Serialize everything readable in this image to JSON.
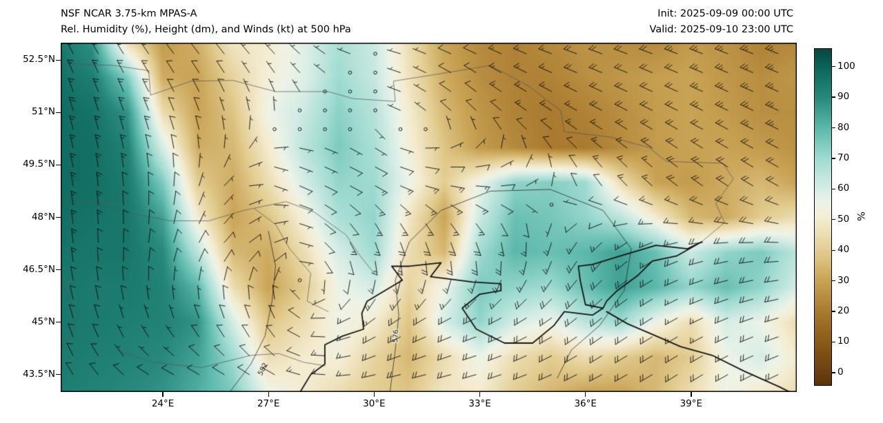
{
  "header": {
    "title_line1": "NSF NCAR 3.75-km MPAS-A",
    "title_line2": "Rel. Humidity (%), Height (dm), and Winds (kt) at 500 hPa",
    "init_label": "Init: 2025-09-09 00:00 UTC",
    "valid_label": "Valid: 2025-09-10 23:00 UTC"
  },
  "chart_data": {
    "type": "heatmap",
    "subtype": "filled-contour map with wind barbs and geopotential height contours",
    "title": "Rel. Humidity (%), Height (dm), and Winds (kt) at 500 hPa",
    "model": "NSF NCAR 3.75-km MPAS-A",
    "extent": {
      "lon_min": 21.1,
      "lon_max": 42.0,
      "lat_min": 43.0,
      "lat_max": 53.0
    },
    "x_ticks": [
      {
        "lon": 24,
        "label": "24°E"
      },
      {
        "lon": 27,
        "label": "27°E"
      },
      {
        "lon": 30,
        "label": "30°E"
      },
      {
        "lon": 33,
        "label": "33°E"
      },
      {
        "lon": 36,
        "label": "36°E"
      },
      {
        "lon": 39,
        "label": "39°E"
      }
    ],
    "y_ticks": [
      {
        "lat": 52.5,
        "label": "52.5°N"
      },
      {
        "lat": 51.0,
        "label": "51°N"
      },
      {
        "lat": 49.5,
        "label": "49.5°N"
      },
      {
        "lat": 48.0,
        "label": "48°N"
      },
      {
        "lat": 46.5,
        "label": "46.5°N"
      },
      {
        "lat": 45.0,
        "label": "45°N"
      },
      {
        "lat": 43.5,
        "label": "43.5°N"
      }
    ],
    "colorbar": {
      "label": "%",
      "ticks": [
        0,
        10,
        20,
        30,
        40,
        50,
        60,
        70,
        80,
        90,
        100
      ],
      "under": "#5a3205",
      "over": "#07463e",
      "stops": [
        {
          "v": 0,
          "c": "#6b3f10"
        },
        {
          "v": 10,
          "c": "#8a5a19"
        },
        {
          "v": 20,
          "c": "#a97a2f"
        },
        {
          "v": 30,
          "c": "#c9a355"
        },
        {
          "v": 40,
          "c": "#e3cd92"
        },
        {
          "v": 50,
          "c": "#f4ecd1"
        },
        {
          "v": 55,
          "c": "#eef3e6"
        },
        {
          "v": 60,
          "c": "#d6ede6"
        },
        {
          "v": 70,
          "c": "#a0dbd1"
        },
        {
          "v": 80,
          "c": "#5cb8ab"
        },
        {
          "v": 90,
          "c": "#27897c"
        },
        {
          "v": 100,
          "c": "#0b6459"
        }
      ]
    },
    "rh_grid": {
      "units": "%",
      "lons": [
        21,
        22,
        23,
        24,
        25,
        26,
        27,
        28,
        29,
        30,
        31,
        32,
        33,
        34,
        35,
        36,
        37,
        38,
        39,
        40,
        41,
        42
      ],
      "lats": [
        53,
        52,
        51,
        50,
        49,
        48,
        47,
        46,
        45,
        44,
        43
      ],
      "values": [
        [
          95,
          88,
          45,
          28,
          33,
          48,
          50,
          58,
          68,
          62,
          45,
          30,
          24,
          22,
          24,
          26,
          25,
          24,
          28,
          26,
          22,
          24
        ],
        [
          97,
          93,
          75,
          32,
          30,
          42,
          52,
          58,
          70,
          63,
          47,
          32,
          25,
          22,
          22,
          25,
          27,
          29,
          30,
          27,
          25,
          27
        ],
        [
          98,
          96,
          88,
          45,
          30,
          38,
          55,
          62,
          73,
          66,
          50,
          35,
          27,
          22,
          20,
          22,
          25,
          28,
          30,
          28,
          25,
          25
        ],
        [
          98,
          97,
          92,
          60,
          32,
          35,
          50,
          65,
          75,
          68,
          52,
          38,
          28,
          24,
          20,
          20,
          24,
          28,
          30,
          30,
          28,
          26
        ],
        [
          98,
          97,
          94,
          75,
          40,
          32,
          45,
          60,
          72,
          70,
          55,
          40,
          55,
          72,
          74,
          70,
          45,
          30,
          28,
          32,
          35,
          30
        ],
        [
          97,
          96,
          95,
          85,
          50,
          30,
          38,
          52,
          68,
          72,
          48,
          30,
          62,
          78,
          76,
          72,
          65,
          50,
          35,
          32,
          40,
          45
        ],
        [
          96,
          95,
          95,
          90,
          65,
          35,
          32,
          45,
          60,
          70,
          45,
          35,
          70,
          80,
          78,
          80,
          85,
          78,
          62,
          72,
          75,
          65
        ],
        [
          95,
          94,
          94,
          92,
          80,
          45,
          30,
          40,
          55,
          60,
          42,
          55,
          75,
          72,
          70,
          78,
          85,
          80,
          72,
          78,
          72,
          60
        ],
        [
          95,
          94,
          93,
          92,
          88,
          60,
          38,
          45,
          55,
          50,
          38,
          60,
          72,
          60,
          55,
          65,
          70,
          55,
          45,
          60,
          55,
          45
        ],
        [
          94,
          93,
          92,
          90,
          85,
          70,
          45,
          50,
          52,
          42,
          35,
          45,
          55,
          45,
          40,
          45,
          40,
          35,
          40,
          55,
          60,
          50
        ],
        [
          93,
          92,
          90,
          88,
          82,
          75,
          55,
          50,
          45,
          40,
          38,
          48,
          50,
          40,
          35,
          30,
          30,
          35,
          45,
          55,
          50,
          45
        ]
      ]
    },
    "wind_grid": {
      "units": "kt",
      "lons": [
        21,
        24,
        27,
        30,
        33,
        36,
        39,
        42
      ],
      "lats": [
        53,
        51,
        49,
        47,
        45,
        43
      ],
      "u": [
        [
          8,
          8,
          5,
          2,
          12,
          18,
          22,
          25
        ],
        [
          5,
          5,
          0,
          1,
          8,
          15,
          20,
          22
        ],
        [
          3,
          0,
          -5,
          -12,
          -15,
          5,
          15,
          18
        ],
        [
          2,
          -2,
          -8,
          -5,
          -5,
          10,
          18,
          20
        ],
        [
          3,
          2,
          5,
          15,
          20,
          15,
          15,
          18
        ],
        [
          5,
          8,
          12,
          18,
          20,
          18,
          15,
          16
        ]
      ],
      "v": [
        [
          -15,
          -10,
          -5,
          0,
          -5,
          -6,
          -8,
          -10
        ],
        [
          -18,
          -12,
          -3,
          1,
          -8,
          -8,
          -10,
          -10
        ],
        [
          -16,
          -10,
          2,
          6,
          0,
          -10,
          -12,
          -10
        ],
        [
          -14,
          -8,
          -5,
          18,
          20,
          15,
          5,
          0
        ],
        [
          -10,
          -5,
          -12,
          10,
          8,
          12,
          8,
          5
        ],
        [
          -8,
          -3,
          -5,
          2,
          5,
          8,
          10,
          8
        ]
      ]
    },
    "height_contours": [
      {
        "label": "576",
        "label_pos": [
          30.62,
          44.6
        ],
        "label_rot": -86,
        "points": [
          [
            30.45,
            43.0
          ],
          [
            30.6,
            44.2
          ],
          [
            30.7,
            45.2
          ],
          [
            30.6,
            46.2
          ],
          [
            31.0,
            47.3
          ],
          [
            31.9,
            48.2
          ],
          [
            33.3,
            48.75
          ],
          [
            35.0,
            48.8
          ],
          [
            36.5,
            48.2
          ],
          [
            37.3,
            47.1
          ],
          [
            37.1,
            45.9
          ],
          [
            36.4,
            44.9
          ],
          [
            35.6,
            44.2
          ],
          [
            35.2,
            43.4
          ]
        ]
      },
      {
        "label": "582",
        "label_pos": [
          26.85,
          43.65
        ],
        "label_rot": -62,
        "points": [
          [
            25.9,
            43.0
          ],
          [
            26.5,
            43.8
          ],
          [
            26.9,
            44.6
          ],
          [
            27.1,
            45.6
          ],
          [
            27.2,
            46.6
          ],
          [
            27.0,
            47.6
          ]
        ]
      }
    ],
    "coastlines": [
      [
        [
          27.9,
          43.0
        ],
        [
          28.2,
          43.5
        ],
        [
          28.6,
          43.8
        ],
        [
          28.6,
          44.35
        ],
        [
          29.1,
          44.6
        ],
        [
          29.7,
          44.8
        ],
        [
          29.65,
          45.25
        ],
        [
          29.8,
          45.6
        ],
        [
          30.3,
          45.9
        ],
        [
          30.8,
          46.2
        ],
        [
          30.5,
          46.6
        ],
        [
          31.0,
          46.6
        ],
        [
          31.9,
          46.7
        ],
        [
          31.6,
          46.3
        ],
        [
          32.0,
          46.25
        ],
        [
          32.8,
          46.15
        ],
        [
          33.6,
          46.1
        ],
        [
          33.6,
          45.9
        ],
        [
          33.0,
          45.8
        ],
        [
          32.5,
          45.4
        ],
        [
          32.9,
          44.8
        ],
        [
          33.7,
          44.4
        ],
        [
          34.5,
          44.4
        ],
        [
          35.1,
          44.9
        ],
        [
          35.4,
          45.3
        ],
        [
          36.2,
          45.2
        ],
        [
          36.5,
          45.4
        ]
      ],
      [
        [
          36.5,
          45.4
        ],
        [
          36.0,
          45.5
        ],
        [
          35.85,
          46.2
        ],
        [
          35.8,
          46.6
        ],
        [
          36.2,
          46.65
        ],
        [
          37.0,
          46.9
        ],
        [
          38.0,
          47.2
        ],
        [
          38.9,
          47.1
        ],
        [
          39.3,
          47.3
        ],
        [
          38.6,
          46.9
        ],
        [
          37.9,
          46.75
        ],
        [
          37.5,
          46.35
        ],
        [
          36.9,
          45.9
        ],
        [
          36.6,
          45.6
        ],
        [
          36.5,
          45.4
        ]
      ],
      [
        [
          36.6,
          45.3
        ],
        [
          37.2,
          44.95
        ],
        [
          37.9,
          44.65
        ],
        [
          38.7,
          44.3
        ],
        [
          39.6,
          44.05
        ],
        [
          40.5,
          43.6
        ],
        [
          41.5,
          43.15
        ],
        [
          42.0,
          42.9
        ]
      ]
    ],
    "borders": [
      [
        [
          21.1,
          52.4
        ],
        [
          22.6,
          52.35
        ],
        [
          23.6,
          52.2
        ],
        [
          23.65,
          51.5
        ],
        [
          24.8,
          51.9
        ],
        [
          26.0,
          51.92
        ],
        [
          27.2,
          51.6
        ],
        [
          28.7,
          51.6
        ],
        [
          29.4,
          51.4
        ],
        [
          30.6,
          51.32
        ],
        [
          30.55,
          51.9
        ],
        [
          31.8,
          52.1
        ],
        [
          33.3,
          52.35
        ],
        [
          34.4,
          51.75
        ]
      ],
      [
        [
          34.4,
          51.75
        ],
        [
          35.3,
          51.05
        ],
        [
          35.4,
          50.45
        ],
        [
          36.7,
          50.3
        ],
        [
          37.8,
          50.0
        ],
        [
          38.3,
          49.6
        ],
        [
          39.9,
          49.55
        ],
        [
          40.2,
          49.1
        ],
        [
          39.7,
          48.4
        ],
        [
          39.95,
          47.85
        ],
        [
          39.3,
          47.3
        ]
      ],
      [
        [
          22.9,
          49.0
        ],
        [
          22.6,
          48.5
        ],
        [
          22.15,
          48.4
        ],
        [
          23.2,
          48.1
        ],
        [
          24.2,
          47.9
        ],
        [
          25.3,
          47.9
        ],
        [
          26.3,
          48.2
        ],
        [
          27.5,
          48.45
        ],
        [
          28.3,
          48.15
        ],
        [
          29.2,
          47.5
        ],
        [
          29.6,
          46.9
        ],
        [
          30.0,
          46.4
        ]
      ],
      [
        [
          26.6,
          48.25
        ],
        [
          27.2,
          47.8
        ],
        [
          27.6,
          47.1
        ],
        [
          28.2,
          46.4
        ],
        [
          28.1,
          45.6
        ],
        [
          28.7,
          45.3
        ]
      ],
      [
        [
          22.7,
          44.2
        ],
        [
          23.7,
          43.85
        ],
        [
          25.1,
          43.7
        ],
        [
          26.5,
          44.05
        ],
        [
          27.3,
          44.1
        ],
        [
          28.0,
          43.85
        ],
        [
          28.6,
          43.75
        ]
      ],
      [
        [
          21.1,
          44.2
        ],
        [
          21.5,
          44.8
        ],
        [
          21.4,
          45.5
        ],
        [
          21.1,
          46.3
        ]
      ],
      [
        [
          21.1,
          48.5
        ],
        [
          22.15,
          48.4
        ]
      ]
    ]
  }
}
